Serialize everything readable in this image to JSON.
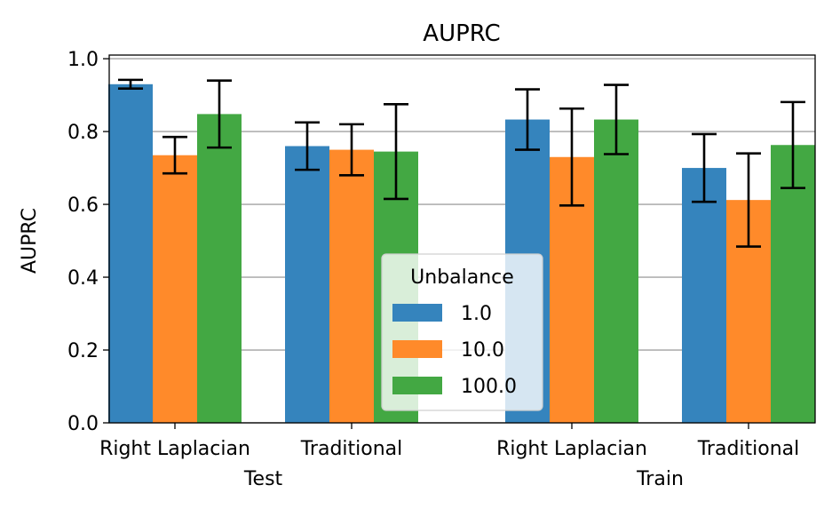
{
  "chart_data": {
    "type": "bar",
    "title": "AUPRC",
    "xlabel": "",
    "ylabel": "AUPRC",
    "ylim": [
      0,
      1.01
    ],
    "yticks": [
      "0.0",
      "0.2",
      "0.4",
      "0.6",
      "0.8",
      "1.0"
    ],
    "grid": "horizontal",
    "legend_placement": "lower-center",
    "legend": {
      "title": "Unbalance"
    },
    "categories": [
      "Right Laplacian",
      "Traditional",
      "Right Laplacian",
      "Traditional"
    ],
    "groups": [
      {
        "label": "Test",
        "categories": [
          0,
          1
        ]
      },
      {
        "label": "Train",
        "categories": [
          2,
          3
        ]
      }
    ],
    "series": [
      {
        "name": "1.0",
        "color": "#3584bd",
        "values": [
          0.93,
          0.76,
          0.833,
          0.7
        ],
        "err": [
          0.012,
          0.065,
          0.083,
          0.093
        ]
      },
      {
        "name": "10.0",
        "color": "#ff8a2a",
        "values": [
          0.735,
          0.75,
          0.73,
          0.612
        ],
        "err": [
          0.05,
          0.07,
          0.133,
          0.128
        ]
      },
      {
        "name": "100.0",
        "color": "#43a843",
        "values": [
          0.848,
          0.745,
          0.833,
          0.763
        ],
        "err": [
          0.092,
          0.13,
          0.095,
          0.118
        ]
      }
    ]
  }
}
